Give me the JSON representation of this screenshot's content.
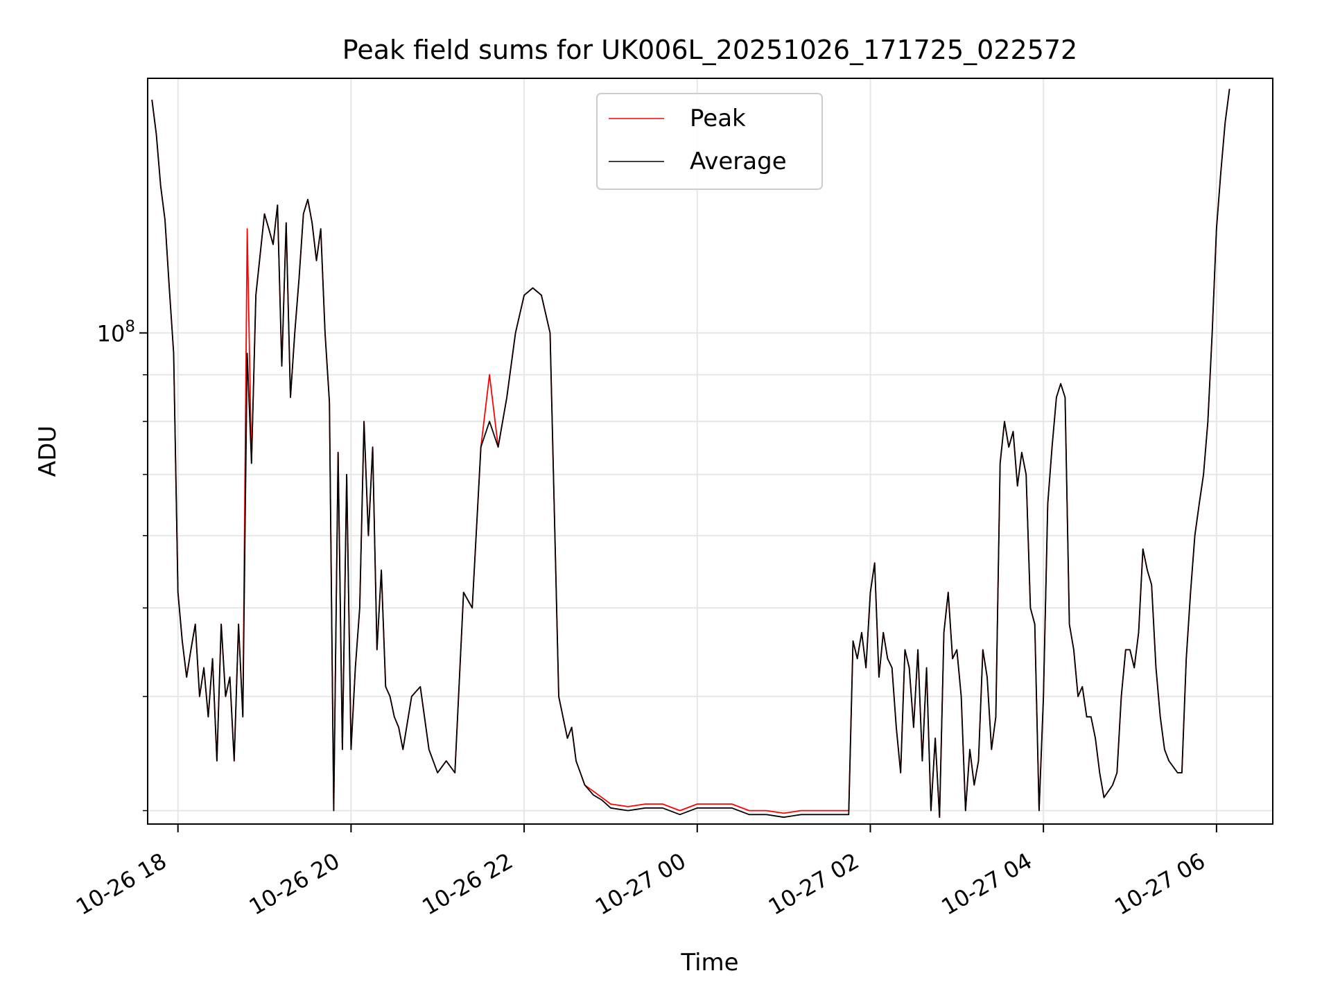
{
  "chart_data": {
    "type": "line",
    "title": "Peak field sums for UK006L_20251026_171725_022572",
    "xlabel": "Time",
    "ylabel": "ADU",
    "yscale": "log",
    "ylim": [
      29000000,
      190000000
    ],
    "y_major_tick": {
      "value": 100000000,
      "label_base": "10",
      "label_exp": "8"
    },
    "y_minor_ticks": [
      30000000,
      40000000,
      50000000,
      60000000,
      70000000,
      80000000,
      90000000,
      200000000
    ],
    "x_range_hours": [
      -0.35,
      12.65
    ],
    "x_ticks": [
      {
        "h": 0,
        "label": "10-26 18"
      },
      {
        "h": 2,
        "label": "10-26 20"
      },
      {
        "h": 4,
        "label": "10-26 22"
      },
      {
        "h": 6,
        "label": "10-27 00"
      },
      {
        "h": 8,
        "label": "10-27 02"
      },
      {
        "h": 10,
        "label": "10-27 04"
      },
      {
        "h": 12,
        "label": "10-27 06"
      }
    ],
    "legend": {
      "position": "upper center",
      "entries": [
        {
          "label": "Peak",
          "color": "#ff0000"
        },
        {
          "label": "Average",
          "color": "#000000"
        }
      ]
    },
    "colors": {
      "peak": "#ff0000",
      "average": "#000000",
      "grid": "#e6e6e6"
    },
    "hours_from_18": [
      -0.3,
      -0.25,
      -0.2,
      -0.15,
      -0.1,
      -0.05,
      0.0,
      0.05,
      0.1,
      0.15,
      0.2,
      0.25,
      0.3,
      0.35,
      0.4,
      0.45,
      0.5,
      0.55,
      0.6,
      0.65,
      0.7,
      0.75,
      0.8,
      0.85,
      0.9,
      1.0,
      1.05,
      1.1,
      1.15,
      1.2,
      1.25,
      1.3,
      1.35,
      1.4,
      1.45,
      1.5,
      1.55,
      1.6,
      1.65,
      1.7,
      1.75,
      1.8,
      1.85,
      1.9,
      1.95,
      2.0,
      2.05,
      2.1,
      2.15,
      2.2,
      2.25,
      2.3,
      2.35,
      2.4,
      2.45,
      2.5,
      2.55,
      2.6,
      2.7,
      2.8,
      2.9,
      3.0,
      3.1,
      3.2,
      3.3,
      3.4,
      3.5,
      3.6,
      3.7,
      3.8,
      3.9,
      4.0,
      4.1,
      4.2,
      4.3,
      4.4,
      4.5,
      4.55,
      4.6,
      4.65,
      4.7,
      4.8,
      4.9,
      5.0,
      5.2,
      5.4,
      5.6,
      5.8,
      6.0,
      6.2,
      6.4,
      6.6,
      6.8,
      7.0,
      7.2,
      7.4,
      7.6,
      7.75,
      7.8,
      7.85,
      7.9,
      7.95,
      8.0,
      8.05,
      8.1,
      8.15,
      8.2,
      8.25,
      8.3,
      8.35,
      8.4,
      8.45,
      8.5,
      8.55,
      8.6,
      8.65,
      8.7,
      8.75,
      8.8,
      8.85,
      8.9,
      8.95,
      9.0,
      9.05,
      9.1,
      9.15,
      9.2,
      9.25,
      9.3,
      9.35,
      9.4,
      9.45,
      9.5,
      9.55,
      9.6,
      9.65,
      9.7,
      9.75,
      9.8,
      9.85,
      9.9,
      9.95,
      10.0,
      10.05,
      10.1,
      10.15,
      10.2,
      10.25,
      10.3,
      10.35,
      10.4,
      10.45,
      10.5,
      10.55,
      10.6,
      10.65,
      10.7,
      10.75,
      10.8,
      10.85,
      10.9,
      10.95,
      11.0,
      11.05,
      11.1,
      11.15,
      11.2,
      11.25,
      11.3,
      11.35,
      11.4,
      11.45,
      11.5,
      11.55,
      11.6,
      11.65,
      11.7,
      11.75,
      11.8,
      11.85,
      11.9,
      11.95,
      12.0,
      12.05,
      12.1,
      12.15
    ],
    "series": [
      {
        "name": "Peak",
        "values": [
          180,
          165,
          145,
          133,
          112,
          95,
          52,
          46,
          42,
          45,
          48,
          40,
          43,
          38,
          44,
          34,
          48,
          40,
          42,
          34,
          48,
          38,
          130,
          72,
          110,
          135,
          130,
          125,
          138,
          92,
          132,
          85,
          100,
          115,
          135,
          140,
          132,
          120,
          130,
          100,
          84,
          30,
          74,
          35,
          70,
          35,
          43,
          50,
          80,
          60,
          75,
          45,
          55,
          41,
          40,
          38,
          37,
          35,
          40,
          41,
          35,
          33,
          34,
          33,
          52,
          50,
          75,
          90,
          75,
          85,
          100,
          110,
          112,
          110,
          100,
          40,
          36,
          37,
          34,
          33,
          32,
          31.5,
          31,
          30.5,
          30.3,
          30.5,
          30.5,
          30,
          30.5,
          30.5,
          30.5,
          30,
          30,
          29.8,
          30,
          30,
          30,
          30,
          46,
          44,
          47,
          43,
          52,
          56,
          42,
          47,
          44,
          43,
          37,
          33,
          45,
          43,
          37,
          45,
          34,
          43,
          30,
          36,
          29.5,
          47,
          52,
          44,
          45,
          40,
          30,
          35,
          32,
          34,
          45,
          42,
          35,
          38,
          72,
          80,
          75,
          78,
          68,
          74,
          70,
          50,
          48,
          30,
          40,
          65,
          75,
          85,
          88,
          85,
          48,
          45,
          40,
          41,
          38,
          38,
          36,
          33,
          31,
          31.5,
          32,
          33,
          40,
          45,
          45,
          43,
          47,
          58,
          55,
          53,
          43,
          38,
          35,
          34,
          33.5,
          33,
          33,
          44,
          52,
          60,
          65,
          70,
          80,
          100,
          130,
          150,
          170,
          185
        ]
      },
      {
        "name": "Average",
        "values": [
          180,
          165,
          145,
          133,
          112,
          95,
          52,
          46,
          42,
          45,
          48,
          40,
          43,
          38,
          44,
          34,
          48,
          40,
          42,
          34,
          48,
          38,
          95,
          72,
          110,
          135,
          130,
          125,
          138,
          92,
          132,
          85,
          100,
          115,
          135,
          140,
          132,
          120,
          130,
          100,
          84,
          30,
          74,
          35,
          70,
          35,
          43,
          50,
          80,
          60,
          75,
          45,
          55,
          41,
          40,
          38,
          37,
          35,
          40,
          41,
          35,
          33,
          34,
          33,
          52,
          50,
          75,
          80,
          75,
          85,
          100,
          110,
          112,
          110,
          100,
          40,
          36,
          37,
          34,
          33,
          32,
          31.2,
          30.8,
          30.2,
          30,
          30.2,
          30.2,
          29.7,
          30.2,
          30.2,
          30.2,
          29.7,
          29.7,
          29.5,
          29.7,
          29.7,
          29.7,
          29.7,
          46,
          44,
          47,
          43,
          52,
          56,
          42,
          47,
          44,
          43,
          37,
          33,
          45,
          43,
          37,
          45,
          34,
          43,
          30,
          36,
          29.5,
          47,
          52,
          44,
          45,
          40,
          30,
          35,
          32,
          34,
          45,
          42,
          35,
          38,
          72,
          80,
          75,
          78,
          68,
          74,
          70,
          50,
          48,
          30,
          40,
          65,
          75,
          85,
          88,
          85,
          48,
          45,
          40,
          41,
          38,
          38,
          36,
          33,
          31,
          31.5,
          32,
          33,
          40,
          45,
          45,
          43,
          47,
          58,
          55,
          53,
          43,
          38,
          35,
          34,
          33.5,
          33,
          33,
          44,
          52,
          60,
          65,
          70,
          80,
          100,
          130,
          150,
          170,
          185
        ]
      }
    ],
    "value_unit_multiplier": 1000000
  }
}
